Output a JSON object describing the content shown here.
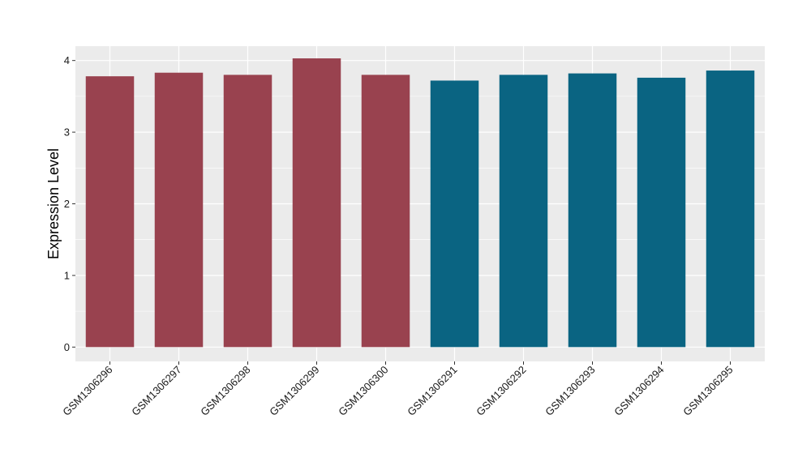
{
  "chart_data": {
    "type": "bar",
    "title": "",
    "xlabel": "",
    "ylabel": "Expression Level",
    "ylim": [
      -0.2,
      4.2
    ],
    "yticks": [
      0,
      1,
      2,
      3,
      4
    ],
    "grid": true,
    "categories": [
      "GSM1306296",
      "GSM1306297",
      "GSM1306298",
      "GSM1306299",
      "GSM1306300",
      "GSM1306291",
      "GSM1306292",
      "GSM1306293",
      "GSM1306294",
      "GSM1306295"
    ],
    "values": [
      3.78,
      3.83,
      3.8,
      4.03,
      3.8,
      3.72,
      3.8,
      3.82,
      3.76,
      3.86
    ],
    "bar_colors": [
      "#99424F",
      "#99424F",
      "#99424F",
      "#99424F",
      "#99424F",
      "#0A6482",
      "#0A6482",
      "#0A6482",
      "#0A6482",
      "#0A6482"
    ],
    "panel_background": "#EBEBEB",
    "grid_color": "#FFFFFF"
  }
}
